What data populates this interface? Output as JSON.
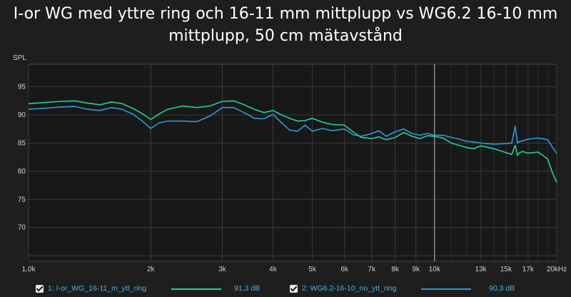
{
  "title": "I-or WG med yttre ring och 16-11 mm mittplupp vs WG6.2 16-10 mm mittplupp, 50 cm mätavstånd",
  "colors": {
    "background": "#1e1e1e",
    "plot_bg": "#181818",
    "grid": "#3a3a3a",
    "series1": "#1fd19a",
    "series2": "#2c9bd6",
    "marker": "#bbbbbb"
  },
  "legend": [
    {
      "label": "1: I-or_WG_16-11_m_ytt_ring",
      "value": "91,3 dB",
      "color": "#1fd19a"
    },
    {
      "label": "2: WG6.2-16-10_no_ytt_ring",
      "value": "90,3 dB",
      "color": "#2c9bd6"
    }
  ],
  "chart_data": {
    "type": "line",
    "title": "I-or WG med yttre ring och 16-11 mm mittplupp vs WG6.2 16-10 mm mittplupp, 50 cm mätavstånd",
    "ylabel": "SPL",
    "xlabel": "",
    "x_scale": "log",
    "xlim": [
      1000,
      20000
    ],
    "ylim": [
      64,
      99
    ],
    "grid": true,
    "marker_x": 10000,
    "y_ticks": [
      95,
      90,
      85,
      80,
      75,
      70
    ],
    "x_ticks": [
      {
        "v": 1000,
        "label": "1,0k"
      },
      {
        "v": 2000,
        "label": "2k"
      },
      {
        "v": 3000,
        "label": "3k"
      },
      {
        "v": 4000,
        "label": "4k"
      },
      {
        "v": 5000,
        "label": "5k"
      },
      {
        "v": 6000,
        "label": "6k"
      },
      {
        "v": 7000,
        "label": "7k"
      },
      {
        "v": 8000,
        "label": "8k"
      },
      {
        "v": 9000,
        "label": "9k"
      },
      {
        "v": 10000,
        "label": "10k"
      },
      {
        "v": 13000,
        "label": "13k"
      },
      {
        "v": 15000,
        "label": "15k"
      },
      {
        "v": 17000,
        "label": "17k"
      },
      {
        "v": 20000,
        "label": "20kHz"
      }
    ],
    "series": [
      {
        "name": "1: I-or_WG_16-11_m_ytt_ring",
        "x": [
          1000,
          1100,
          1200,
          1300,
          1400,
          1500,
          1600,
          1700,
          1800,
          1900,
          2000,
          2100,
          2200,
          2400,
          2600,
          2800,
          3000,
          3200,
          3400,
          3600,
          3800,
          4000,
          4200,
          4400,
          4600,
          4800,
          5000,
          5300,
          5600,
          6000,
          6300,
          6600,
          7000,
          7300,
          7600,
          8000,
          8400,
          8800,
          9200,
          9600,
          10000,
          10500,
          11000,
          11500,
          12000,
          12500,
          13000,
          14000,
          15000,
          15500,
          15800,
          16000,
          16200,
          16500,
          17000,
          18000,
          19000,
          19500,
          20000
        ],
        "y": [
          92.0,
          92.2,
          92.4,
          92.5,
          92.1,
          91.8,
          92.3,
          92.0,
          91.2,
          90.3,
          89.2,
          90.2,
          91.0,
          91.6,
          91.3,
          91.6,
          92.4,
          92.5,
          91.8,
          91.0,
          90.4,
          90.8,
          90.0,
          89.4,
          88.9,
          89.0,
          89.4,
          88.7,
          88.3,
          88.2,
          87.0,
          86.0,
          85.8,
          86.1,
          85.6,
          86.0,
          86.9,
          86.2,
          85.8,
          86.3,
          86.2,
          85.9,
          85.0,
          84.6,
          84.2,
          84.0,
          84.5,
          84.0,
          83.3,
          83.0,
          84.6,
          82.8,
          83.3,
          83.5,
          83.2,
          83.4,
          82.2,
          79.8,
          78.0
        ]
      },
      {
        "name": "2: WG6.2-16-10_no_ytt_ring",
        "x": [
          1000,
          1100,
          1200,
          1300,
          1400,
          1500,
          1600,
          1700,
          1800,
          1900,
          2000,
          2100,
          2200,
          2400,
          2600,
          2800,
          3000,
          3200,
          3400,
          3600,
          3800,
          4000,
          4200,
          4400,
          4600,
          4800,
          5000,
          5300,
          5600,
          6000,
          6300,
          6600,
          7000,
          7300,
          7600,
          8000,
          8400,
          8800,
          9200,
          9600,
          10000,
          10500,
          11000,
          11500,
          12000,
          12500,
          13000,
          14000,
          15000,
          15500,
          15800,
          16000,
          16200,
          16500,
          17000,
          18000,
          19000,
          19500,
          20000
        ],
        "y": [
          91.0,
          91.2,
          91.4,
          91.5,
          91.0,
          90.8,
          91.3,
          91.0,
          90.2,
          89.0,
          87.6,
          88.6,
          88.9,
          88.9,
          88.8,
          89.8,
          91.3,
          91.3,
          90.4,
          89.4,
          89.3,
          90.1,
          88.6,
          87.3,
          87.1,
          88.2,
          87.1,
          87.6,
          87.2,
          87.5,
          86.5,
          86.2,
          86.7,
          87.2,
          86.2,
          87.0,
          87.5,
          86.7,
          86.4,
          86.7,
          86.4,
          86.4,
          86.0,
          85.7,
          85.3,
          85.2,
          85.0,
          84.8,
          84.9,
          85.0,
          88.0,
          85.0,
          85.3,
          85.4,
          85.7,
          85.9,
          85.6,
          84.3,
          83.2
        ]
      }
    ]
  }
}
